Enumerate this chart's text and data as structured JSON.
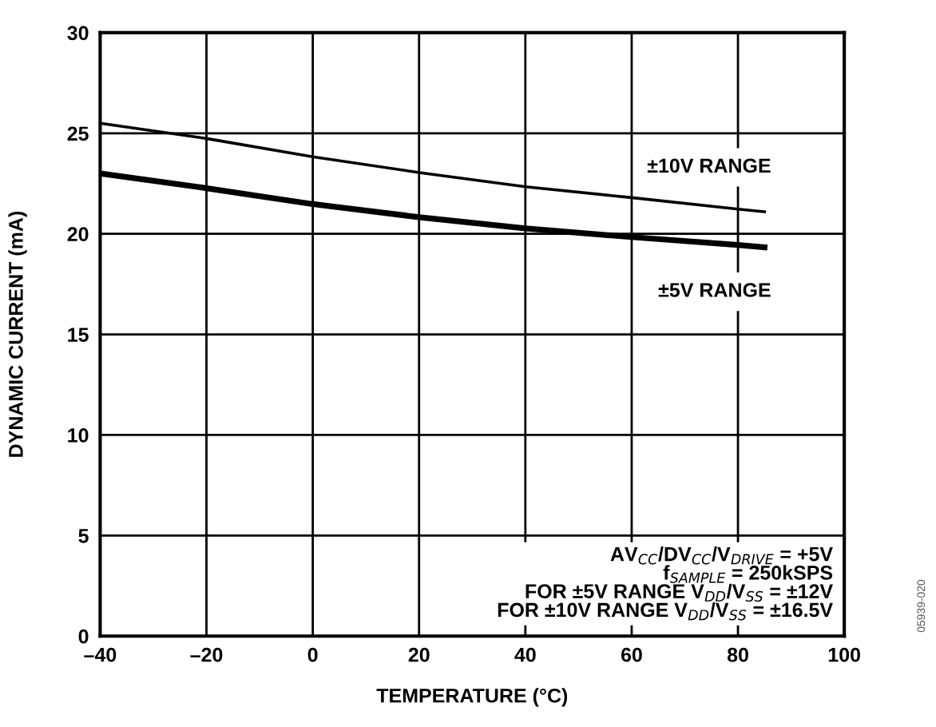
{
  "chart_data": {
    "type": "line",
    "xlabel": "TEMPERATURE (°C)",
    "ylabel": "DYNAMIC CURRENT (mA)",
    "x": [
      -40,
      -20,
      0,
      20,
      40,
      60,
      80,
      85
    ],
    "series": [
      {
        "name": "±10V RANGE",
        "color": "#000000",
        "values": [
          25.5,
          24.74,
          23.83,
          23.05,
          22.34,
          21.8,
          21.23,
          21.1
        ]
      },
      {
        "name": "±5V RANGE",
        "color": "#000000",
        "values": [
          23.0,
          22.27,
          21.48,
          20.83,
          20.27,
          19.84,
          19.45,
          19.33
        ]
      }
    ],
    "xlim": [
      -40,
      100
    ],
    "xticks": [
      {
        "value": -40,
        "label": "–40"
      },
      {
        "value": -20,
        "label": "–20"
      },
      0,
      20,
      40,
      60,
      80,
      100
    ],
    "ylim": [
      0,
      30
    ],
    "yticks": [
      0,
      5,
      10,
      15,
      20,
      25,
      30
    ],
    "grid": true,
    "legend": false,
    "marker": "none",
    "line_style": "solid",
    "annotations": [
      "AV$_{CC}$/DV$_{CC}$/V$_{DRIVE}$ = +5V\nf$_{SAMPLE}$ = 250kSPS\nFOR ±5V RANGE V$_{DD}$/V$_{SS}$ = ±12V\nFOR ±10V RANGE V$_{DD}$/V$_{SS}$ = ±16.5V",
      "05939-020"
    ]
  }
}
